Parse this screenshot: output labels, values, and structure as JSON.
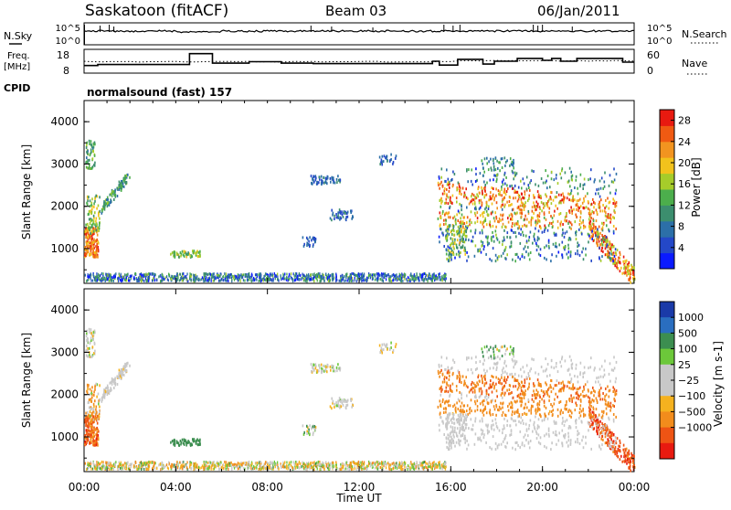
{
  "header": {
    "title": "Saskatoon (fitACF)",
    "beam": "Beam 03",
    "date": "06/Jan/2011"
  },
  "sky_panel": {
    "left_label": "N.Sky",
    "left_ticks": [
      "10^5",
      "10^0"
    ],
    "right_label": "N.Search",
    "right_ticks": [
      "10^5",
      "10^0"
    ]
  },
  "freq_panel": {
    "left_label_line1": "Freq.",
    "left_label_line2": "[MHz]",
    "left_ticks": [
      "18",
      "8"
    ],
    "right_label": "Nave",
    "right_ticks": [
      "60",
      "0"
    ]
  },
  "cpid": {
    "label": "CPID",
    "value": "normalsound (fast) 157"
  },
  "colors": {
    "power_scale": [
      "#0a1aff",
      "#2448c8",
      "#2c6fa8",
      "#3c8e6e",
      "#4cae4c",
      "#a6cc2a",
      "#f2c21c",
      "#f29420",
      "#f05a12",
      "#e81a10"
    ],
    "velocity_scale": [
      "#1a3aa8",
      "#2a6ec0",
      "#3c8e50",
      "#6cc83a",
      "#c8c8c8",
      "#c8c8c8",
      "#f5b21f",
      "#f28c1c",
      "#ee5414",
      "#e81a10"
    ]
  },
  "chart_data": [
    {
      "type": "heatmap",
      "name": "power",
      "ylabel": "Slant Range [km]",
      "ylim": [
        180,
        4500
      ],
      "yticks": [
        1000,
        2000,
        3000,
        4000
      ],
      "xlim": [
        0,
        24
      ],
      "colorbar_label": "Power [dB]",
      "colorbar_ticks": [
        4,
        8,
        12,
        16,
        20,
        24,
        28
      ],
      "colorbar_range": [
        0,
        30
      ]
    },
    {
      "type": "heatmap",
      "name": "velocity",
      "ylabel": "Slant Range [km]",
      "ylim": [
        180,
        4500
      ],
      "yticks": [
        1000,
        2000,
        3000,
        4000
      ],
      "xlim": [
        0,
        24
      ],
      "colorbar_label": "Velocity [m s-1]",
      "colorbar_ticks": [
        "1000",
        "500",
        "100",
        "25",
        "−25",
        "−100",
        "−500",
        "−1000"
      ]
    }
  ],
  "time_axis": {
    "label": "Time UT",
    "ticks": [
      "00:00",
      "04:00",
      "08:00",
      "12:00",
      "16:00",
      "20:00",
      "00:00"
    ],
    "tick_hours": [
      0,
      4,
      8,
      12,
      16,
      20,
      24
    ]
  },
  "freq_series": {
    "x_hours": [
      0,
      0.6,
      4.6,
      5.6,
      7.2,
      7.6,
      8.6,
      10,
      12,
      15.2,
      15.5,
      16.3,
      17.4,
      17.9,
      18.9,
      20.0,
      20.4,
      20.8,
      21.5,
      23.5,
      24
    ],
    "freq_mhz": [
      11.2,
      11.6,
      16.2,
      12.2,
      12.8,
      12.8,
      12.2,
      12.0,
      12.0,
      13.0,
      11.4,
      13.8,
      11.8,
      13.0,
      14.2,
      13.4,
      14.2,
      13.0,
      14.2,
      12.6,
      12.6
    ]
  }
}
